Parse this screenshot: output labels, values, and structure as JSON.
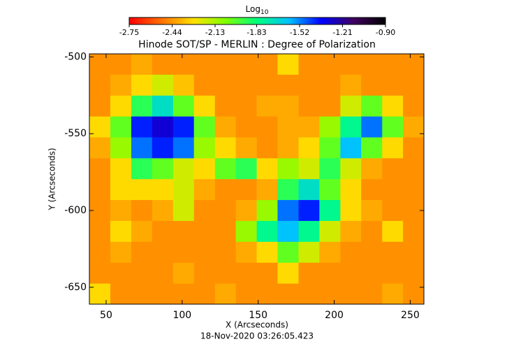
{
  "chart_data": {
    "type": "heatmap",
    "title": "Hinode SOT/SP - MERLIN : Degree of Polarization",
    "xlabel": "X (Arcseconds)",
    "ylabel": "Y (Arcseconds)",
    "footer": "18-Nov-2020 03:26:05.423",
    "colorbar": {
      "label": "Log",
      "subscript": "10",
      "clim": [
        -2.75,
        {
          "value": -0.9,
          "label": "-0.90"
        }
      ],
      "ticks": [
        -2.75,
        -2.44,
        -2.13,
        -1.83,
        -1.52,
        -1.21,
        {
          "value": -0.9,
          "label": "-0.90"
        }
      ],
      "colormap": [
        "#ff0000",
        "#ff7000",
        "#ffe000",
        "#80ff00",
        "#00ff80",
        "#00c0ff",
        "#0000ff",
        "#400060",
        "#000000"
      ]
    },
    "xlim": [
      39,
      259
    ],
    "ylim": [
      -661,
      -498
    ],
    "xticks": [
      50,
      100,
      150,
      200,
      250
    ],
    "yticks": [
      -500,
      -550,
      -600,
      -650
    ],
    "x": [
      45.9,
      59.6,
      73.4,
      87.1,
      100.9,
      114.6,
      128.4,
      142.1,
      155.9,
      169.6,
      183.4,
      197.1,
      210.9,
      224.6,
      238.4,
      252.1
    ],
    "y": [
      -504.8,
      -518.4,
      -532,
      -545.6,
      -559.2,
      -572.8,
      -586.4,
      -600,
      -613.6,
      -627.2,
      -640.8,
      -654.4
    ],
    "z": [
      [
        -2.45,
        -2.45,
        -2.4,
        -2.45,
        -2.45,
        -2.45,
        -2.45,
        -2.45,
        -2.45,
        -2.3,
        -2.45,
        -2.45,
        -2.45,
        -2.45,
        -2.45,
        -2.45
      ],
      [
        -2.45,
        -2.4,
        -2.3,
        -2.2,
        -2.35,
        -2.45,
        -2.45,
        -2.45,
        -2.45,
        -2.45,
        -2.45,
        -2.45,
        -2.4,
        -2.45,
        -2.45,
        -2.45
      ],
      [
        -2.45,
        -2.3,
        -1.9,
        -1.7,
        -2.0,
        -2.3,
        -2.45,
        -2.45,
        -2.4,
        -2.4,
        -2.45,
        -2.45,
        -2.2,
        -2.0,
        -2.3,
        -2.45
      ],
      [
        -2.3,
        -2.0,
        -1.4,
        -1.3,
        -1.4,
        -2.0,
        -2.4,
        -2.45,
        -2.45,
        -2.4,
        -2.4,
        -2.1,
        -1.8,
        -1.5,
        -2.0,
        -2.4
      ],
      [
        -2.4,
        -2.1,
        -1.5,
        -1.4,
        -1.5,
        -2.1,
        -2.3,
        -2.4,
        -2.45,
        -2.4,
        -2.3,
        -2.0,
        -1.6,
        -2.0,
        -2.3,
        -2.45
      ],
      [
        -2.45,
        -2.3,
        -1.9,
        -2.0,
        -2.2,
        -2.3,
        -2.0,
        -1.9,
        -2.3,
        -2.1,
        -2.2,
        -1.9,
        -2.2,
        -2.4,
        -2.45,
        -2.45
      ],
      [
        -2.45,
        -2.3,
        -2.3,
        -2.3,
        -2.2,
        -2.4,
        -2.45,
        -2.45,
        -2.4,
        -1.9,
        -1.7,
        -2.0,
        -2.3,
        -2.45,
        -2.45,
        -2.45
      ],
      [
        -2.45,
        -2.4,
        -2.45,
        -2.4,
        -2.2,
        -2.45,
        -2.45,
        -2.4,
        -2.1,
        -1.5,
        -1.4,
        -1.8,
        -2.3,
        -2.4,
        -2.45,
        -2.45
      ],
      [
        -2.45,
        -2.3,
        -2.4,
        -2.45,
        -2.45,
        -2.45,
        -2.45,
        -2.1,
        -1.8,
        -1.6,
        -1.8,
        -2.2,
        -2.4,
        -2.45,
        -2.3,
        -2.45
      ],
      [
        -2.45,
        -2.4,
        -2.45,
        -2.45,
        -2.45,
        -2.45,
        -2.45,
        -2.4,
        -2.3,
        -2.0,
        -2.2,
        -2.4,
        -2.45,
        -2.45,
        -2.45,
        -2.45
      ],
      [
        -2.45,
        -2.45,
        -2.45,
        -2.45,
        -2.4,
        -2.45,
        -2.45,
        -2.45,
        -2.45,
        -2.3,
        -2.45,
        -2.45,
        -2.45,
        -2.45,
        -2.45,
        -2.45
      ],
      [
        -2.3,
        -2.45,
        -2.45,
        -2.45,
        -2.45,
        -2.45,
        -2.4,
        -2.45,
        -2.45,
        -2.45,
        -2.45,
        -2.45,
        -2.45,
        -2.45,
        -2.4,
        -2.45
      ]
    ]
  }
}
